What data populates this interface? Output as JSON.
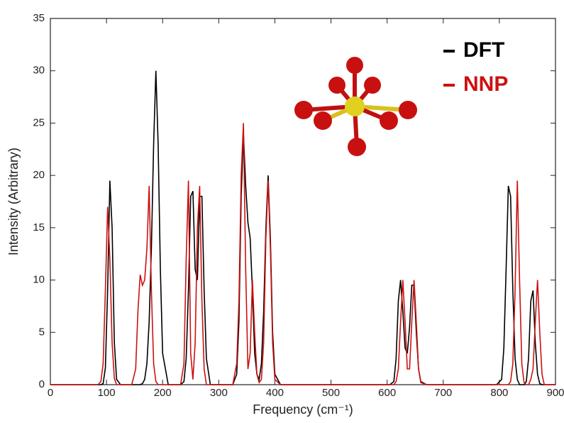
{
  "chart_data": {
    "type": "line",
    "xlabel": "Frequency (cm⁻¹)",
    "ylabel": "Intensity (Arbitrary)",
    "xlim": [
      0,
      900
    ],
    "xticks": [
      0,
      100,
      200,
      300,
      400,
      500,
      600,
      700,
      800,
      900
    ],
    "ylim": [
      0,
      35
    ],
    "yticks": [
      0,
      5,
      10,
      15,
      20,
      25,
      30,
      35
    ],
    "legend": "upper right",
    "x": [
      0,
      85,
      90,
      94,
      98,
      102,
      106,
      110,
      114,
      118,
      125,
      145,
      152,
      156,
      160,
      164,
      168,
      172,
      176,
      180,
      184,
      188,
      192,
      196,
      200,
      210,
      232,
      238,
      242,
      246,
      250,
      254,
      258,
      262,
      266,
      270,
      274,
      278,
      285,
      325,
      332,
      336,
      340,
      344,
      348,
      352,
      356,
      360,
      364,
      368,
      372,
      376,
      380,
      384,
      388,
      392,
      396,
      400,
      410,
      605,
      612,
      616,
      620,
      624,
      628,
      632,
      636,
      640,
      644,
      648,
      652,
      656,
      660,
      670,
      795,
      804,
      808,
      812,
      816,
      820,
      824,
      828,
      832,
      836,
      840,
      844,
      848,
      852,
      856,
      860,
      864,
      868,
      872,
      876,
      880,
      900
    ],
    "series": [
      {
        "name": "DFT",
        "color": "#000000",
        "values": [
          0,
          0,
          0,
          0.1,
          1.6,
          9,
          19.5,
          15,
          4,
          0.5,
          0,
          0,
          0,
          0,
          0,
          0.1,
          0.5,
          2,
          6,
          13,
          23,
          30,
          23,
          11,
          3,
          0,
          0,
          0.3,
          2.5,
          9,
          18,
          18.5,
          11,
          10,
          18,
          18,
          9,
          2.5,
          0,
          0,
          1,
          6,
          18,
          24,
          19,
          15.5,
          14,
          9,
          3,
          1,
          0.5,
          2,
          7,
          15,
          20,
          14,
          5,
          1,
          0,
          0,
          0.3,
          2.5,
          8,
          10,
          7,
          3.5,
          3,
          5.5,
          9.5,
          9.5,
          5,
          1.5,
          0.3,
          0,
          0,
          0.5,
          3.5,
          11,
          19,
          18,
          9,
          2.5,
          0.5,
          0,
          0,
          0,
          0.3,
          2.5,
          8,
          9,
          4,
          1,
          0.1,
          0,
          0,
          0
        ]
      },
      {
        "name": "NNP",
        "color": "#cc1111",
        "values": [
          0,
          0,
          0.3,
          2,
          9,
          17,
          12,
          4,
          0.6,
          0,
          0,
          0,
          1.5,
          7,
          10.5,
          9.5,
          10,
          13,
          19,
          9,
          2,
          0.3,
          0,
          0,
          0,
          0,
          0,
          2,
          12,
          19.5,
          3,
          0.5,
          4,
          15,
          19,
          8,
          1.5,
          0,
          0,
          0,
          2,
          8,
          20,
          25,
          11,
          1.5,
          3,
          10,
          5,
          1,
          0.2,
          0.5,
          4,
          14,
          19.5,
          13,
          4,
          0.5,
          0,
          0,
          0,
          0.3,
          1.5,
          6,
          10,
          6,
          1.5,
          1.5,
          6,
          10,
          6,
          1.5,
          0.2,
          0,
          0,
          0,
          0,
          0,
          0,
          0.3,
          2,
          9,
          19.5,
          10,
          2,
          0.2,
          0,
          0,
          0.5,
          1.5,
          6,
          10,
          5,
          1,
          0,
          0
        ]
      }
    ]
  }
}
